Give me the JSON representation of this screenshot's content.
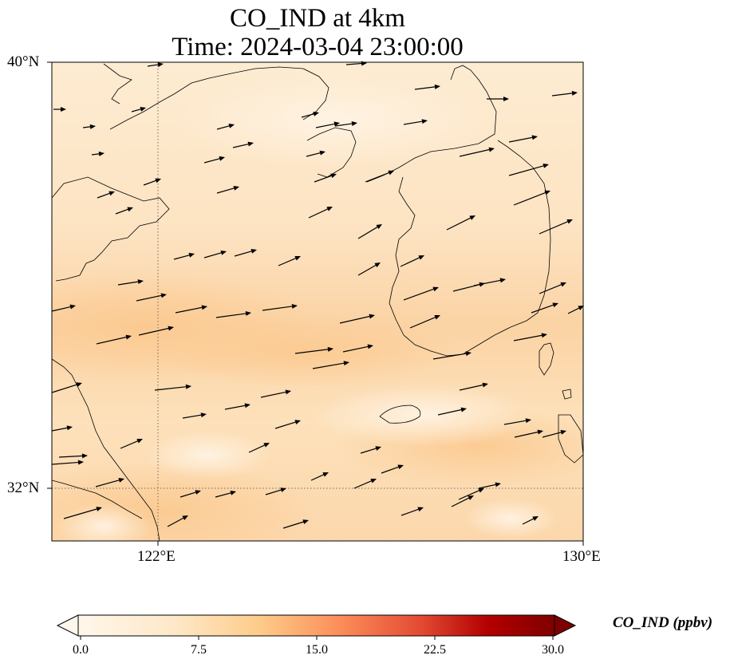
{
  "figure": {
    "title_line1": "CO_IND at 4km",
    "title_line2": "Time: 2024-03-04 23:00:00"
  },
  "map": {
    "lat_ticks": [
      "40°N",
      "32°N"
    ],
    "lon_ticks": [
      "122°E",
      "130°E"
    ],
    "extent": {
      "lon": [
        120,
        130
      ],
      "lat": [
        31,
        40
      ]
    },
    "gridlines": {
      "lon": [
        122
      ],
      "lat": [
        32
      ],
      "style": "dotted"
    },
    "field_colormap": "OrRd",
    "field_visible_range_ppbv": [
      1,
      6
    ],
    "wind_vectors": "northeastward winds (arrows pointing east-northeast)"
  },
  "colorbar": {
    "label": "CO_IND (ppbv)",
    "ticks": [
      "0.0",
      "7.5",
      "15.0",
      "22.5",
      "30.0"
    ],
    "min": 0,
    "max": 30,
    "extend": "both",
    "colors": [
      "#fff7ec",
      "#fdd49e",
      "#fc8d59",
      "#d7301f",
      "#7f0000"
    ]
  }
}
